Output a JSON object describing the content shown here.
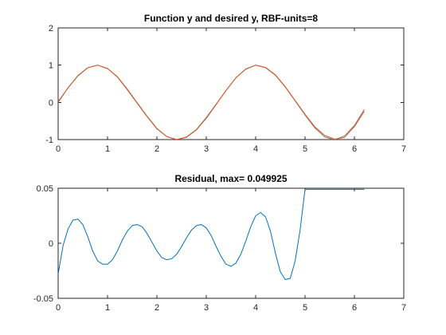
{
  "figure": {
    "background": "#ffffff"
  },
  "chart_data": [
    {
      "type": "line",
      "title": "Function y and desired y, RBF-units=8",
      "xlabel": "",
      "ylabel": "",
      "xlim": [
        0,
        7
      ],
      "ylim": [
        -1,
        2
      ],
      "xticks": [
        0,
        1,
        2,
        3,
        4,
        5,
        6,
        7
      ],
      "yticks": [
        -1,
        0,
        1,
        2
      ],
      "grid": false,
      "legend": "none",
      "series": [
        {
          "color": "#7f7f7f",
          "x": [
            0,
            0.2,
            0.4,
            0.6,
            0.8,
            1.0,
            1.2,
            1.4,
            1.6,
            1.8,
            2.0,
            2.2,
            2.4,
            2.6,
            2.8,
            3.0,
            3.2,
            3.4,
            3.6,
            3.8,
            4.0,
            4.2,
            4.4,
            4.6,
            4.8,
            5.0,
            5.2,
            5.4,
            5.6,
            5.8,
            6.0,
            6.2
          ],
          "y": [
            0.02,
            0.39,
            0.71,
            0.93,
            1.0,
            0.91,
            0.69,
            0.36,
            -0.01,
            -0.37,
            -0.7,
            -0.92,
            -1.0,
            -0.94,
            -0.74,
            -0.43,
            -0.06,
            0.32,
            0.66,
            0.9,
            1.0,
            0.93,
            0.73,
            0.41,
            0.04,
            -0.34,
            -0.69,
            -0.93,
            -1.01,
            -0.9,
            -0.62,
            -0.19
          ]
        },
        {
          "color": "#d95319",
          "x": [
            0,
            0.2,
            0.4,
            0.6,
            0.8,
            1.0,
            1.2,
            1.4,
            1.6,
            1.8,
            2.0,
            2.2,
            2.4,
            2.6,
            2.8,
            3.0,
            3.2,
            3.4,
            3.6,
            3.8,
            4.0,
            4.2,
            4.4,
            4.6,
            4.8,
            5.0,
            5.2,
            5.4,
            5.6,
            5.8,
            6.0,
            6.2
          ],
          "y": [
            0.0,
            0.39,
            0.72,
            0.93,
            1.0,
            0.91,
            0.68,
            0.34,
            -0.02,
            -0.38,
            -0.71,
            -0.92,
            -1.0,
            -0.93,
            -0.73,
            -0.41,
            -0.05,
            0.32,
            0.66,
            0.89,
            1.0,
            0.94,
            0.74,
            0.42,
            0.05,
            -0.32,
            -0.66,
            -0.89,
            -0.99,
            -0.94,
            -0.65,
            -0.24
          ]
        }
      ]
    },
    {
      "type": "line",
      "title": "Residual, max= 0.049925",
      "xlabel": "",
      "ylabel": "",
      "xlim": [
        0,
        7
      ],
      "ylim": [
        -0.05,
        0.05
      ],
      "xticks": [
        0,
        1,
        2,
        3,
        4,
        5,
        6,
        7
      ],
      "yticks": [
        -0.05,
        0,
        0.05
      ],
      "ytick_labels": [
        "-0.05",
        "0",
        "0.05"
      ],
      "grid": false,
      "legend": "none",
      "series": [
        {
          "color": "#0072bd",
          "x": [
            0,
            0.1,
            0.2,
            0.3,
            0.4,
            0.5,
            0.6,
            0.7,
            0.8,
            0.9,
            1.0,
            1.1,
            1.2,
            1.3,
            1.4,
            1.5,
            1.6,
            1.7,
            1.8,
            1.9,
            2.0,
            2.1,
            2.2,
            2.3,
            2.4,
            2.5,
            2.6,
            2.7,
            2.8,
            2.9,
            3.0,
            3.1,
            3.2,
            3.3,
            3.4,
            3.5,
            3.6,
            3.7,
            3.8,
            3.9,
            4.0,
            4.1,
            4.2,
            4.3,
            4.4,
            4.5,
            4.6,
            4.7,
            4.8,
            4.9,
            5.0,
            5.1,
            5.2,
            5.3,
            5.4,
            5.5,
            5.6,
            5.7,
            5.8,
            5.9,
            6.0,
            6.1,
            6.2
          ],
          "y": [
            -0.028,
            -0.002,
            0.013,
            0.021,
            0.022,
            0.017,
            0.006,
            -0.007,
            -0.016,
            -0.019,
            -0.019,
            -0.015,
            -0.007,
            0.003,
            0.011,
            0.016,
            0.017,
            0.015,
            0.009,
            0.001,
            -0.007,
            -0.013,
            -0.015,
            -0.014,
            -0.01,
            -0.003,
            0.005,
            0.012,
            0.016,
            0.017,
            0.014,
            0.007,
            -0.003,
            -0.012,
            -0.019,
            -0.021,
            -0.018,
            -0.01,
            0.002,
            0.015,
            0.025,
            0.028,
            0.024,
            0.011,
            -0.009,
            -0.026,
            -0.033,
            -0.032,
            -0.016,
            0.012,
            0.049,
            0.049,
            0.049,
            0.049,
            0.049,
            0.049,
            0.049,
            0.049,
            0.049,
            0.049,
            0.049,
            0.049,
            0.049
          ]
        }
      ]
    }
  ]
}
